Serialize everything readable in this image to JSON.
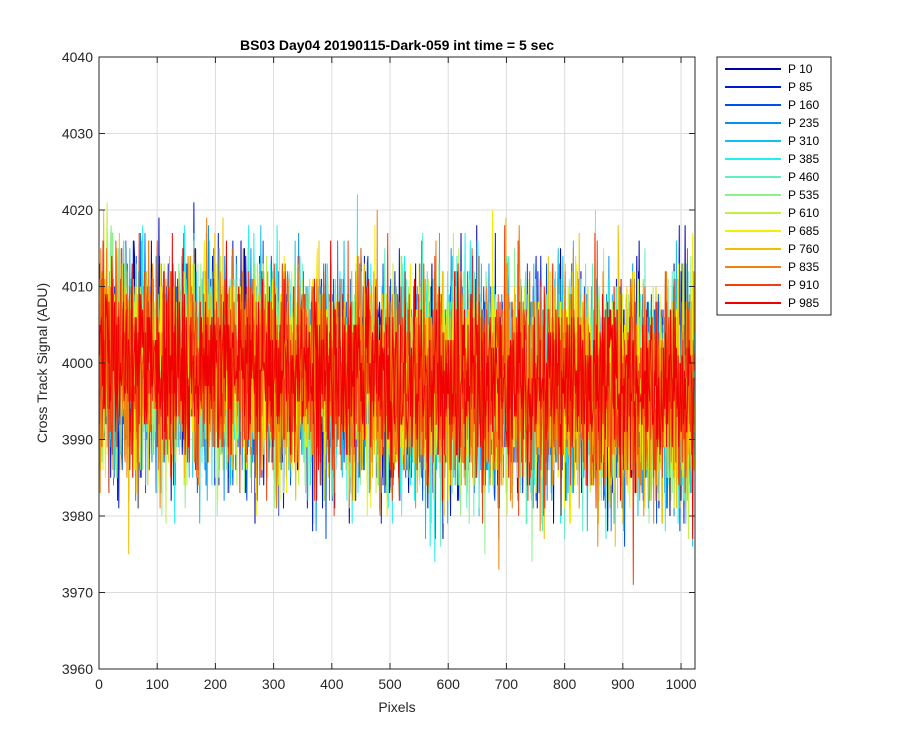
{
  "chart_data": {
    "type": "line",
    "title": "BS03 Day04 20190115-Dark-059 int time = 5 sec",
    "xlabel": "Pixels",
    "ylabel": "Cross Track Signal (ADU)",
    "xlim": [
      0,
      1024
    ],
    "ylim": [
      3960,
      4040
    ],
    "x_ticks": [
      0,
      100,
      200,
      300,
      400,
      500,
      600,
      700,
      800,
      900,
      1000
    ],
    "y_ticks": [
      3960,
      3970,
      3980,
      3990,
      4000,
      4010,
      4020,
      4030,
      4040
    ],
    "x_tick_labels": [
      "0",
      "100",
      "200",
      "300",
      "400",
      "500",
      "600",
      "700",
      "800",
      "900",
      "1000"
    ],
    "y_tick_labels": [
      "3960",
      "3970",
      "3980",
      "3990",
      "4000",
      "4010",
      "4020",
      "4030",
      "4040"
    ],
    "grid": true,
    "legend_position": "outside-right-top",
    "series": [
      {
        "name": "P 10",
        "color": "#0000a8",
        "mean_start": 4000,
        "mean_end": 3996,
        "noise_sd": 7,
        "seed": 11
      },
      {
        "name": "P 85",
        "color": "#0018d8",
        "mean_start": 4000,
        "mean_end": 3996,
        "noise_sd": 7,
        "seed": 23
      },
      {
        "name": "P 160",
        "color": "#0050f0",
        "mean_start": 4000,
        "mean_end": 3996,
        "noise_sd": 7,
        "seed": 37
      },
      {
        "name": "P 235",
        "color": "#0890f0",
        "mean_start": 4000,
        "mean_end": 3996,
        "noise_sd": 7,
        "seed": 41
      },
      {
        "name": "P 310",
        "color": "#10c0f0",
        "mean_start": 4000,
        "mean_end": 3996,
        "noise_sd": 7,
        "seed": 53
      },
      {
        "name": "P 385",
        "color": "#20f0f0",
        "mean_start": 4000,
        "mean_end": 3996,
        "noise_sd": 7,
        "seed": 67
      },
      {
        "name": "P 460",
        "color": "#60f0c0",
        "mean_start": 4000,
        "mean_end": 3996,
        "noise_sd": 7,
        "seed": 71
      },
      {
        "name": "P 535",
        "color": "#90f090",
        "mean_start": 4000,
        "mean_end": 3996,
        "noise_sd": 7,
        "seed": 83
      },
      {
        "name": "P 610",
        "color": "#c0f040",
        "mean_start": 4000,
        "mean_end": 3996,
        "noise_sd": 7,
        "seed": 97
      },
      {
        "name": "P 685",
        "color": "#f0f000",
        "mean_start": 4000,
        "mean_end": 3996,
        "noise_sd": 7,
        "seed": 101
      },
      {
        "name": "P 760",
        "color": "#f0c000",
        "mean_start": 4000,
        "mean_end": 3996,
        "noise_sd": 7,
        "seed": 113
      },
      {
        "name": "P 835",
        "color": "#f08010",
        "mean_start": 4000,
        "mean_end": 3996,
        "noise_sd": 7,
        "seed": 127
      },
      {
        "name": "P 910",
        "color": "#f04010",
        "mean_start": 4000,
        "mean_end": 3996,
        "noise_sd": 7,
        "seed": 131
      },
      {
        "name": "P 985",
        "color": "#f00000",
        "mean_start": 4000,
        "mean_end": 3996,
        "noise_sd": 6,
        "seed": 149
      }
    ]
  }
}
